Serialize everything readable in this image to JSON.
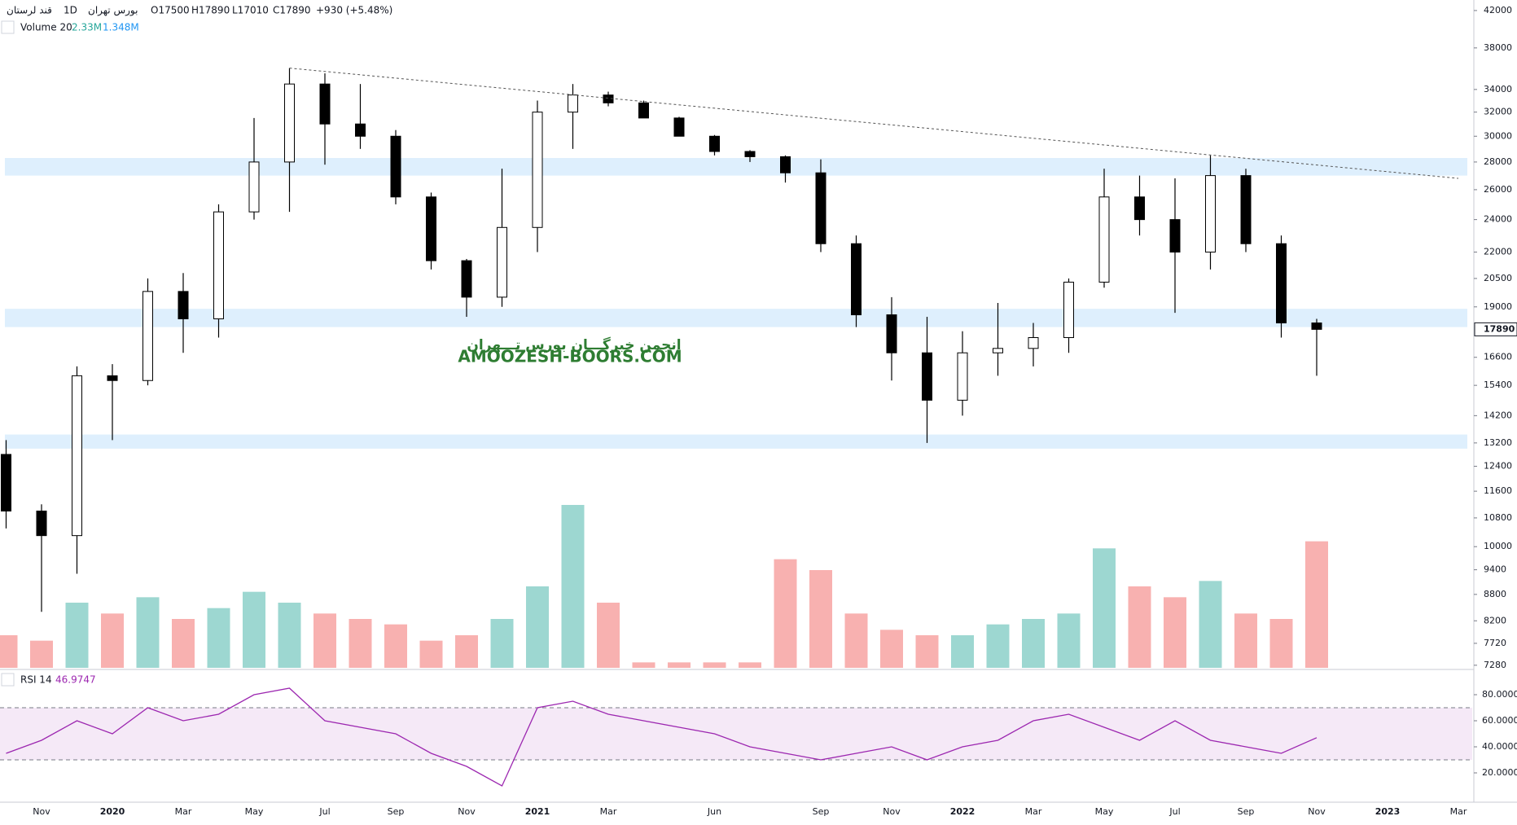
{
  "chart_data": {
    "type": "candlestick",
    "header": {
      "symbol": "قند لرستان",
      "interval": "1D",
      "exchange": "بورس تهران",
      "open": "O17500",
      "high": "H17890",
      "low": "L17010",
      "close": "C17890",
      "change": "+930 (+5.48%)"
    },
    "volume_legend": {
      "label": "Volume 20",
      "last": "2.33M",
      "ma": "1.348M"
    },
    "rsi_legend": {
      "label": "RSI 14",
      "last": "46.9747"
    },
    "watermark": {
      "line1": "انجمن خبرگـــان بورس تـــهران",
      "line2": "AMOOZESH-BOORS.COM"
    },
    "categories": [
      null,
      "Nov",
      null,
      "2020",
      null,
      "Mar",
      null,
      "May",
      null,
      "Jul",
      null,
      "Sep",
      null,
      "Nov",
      null,
      "2021",
      null,
      "Mar",
      null,
      null,
      "Jun",
      null,
      null,
      "Sep",
      null,
      "Nov",
      null,
      "2022",
      null,
      "Mar",
      null,
      "May",
      null,
      "Jul",
      null,
      "Sep",
      null,
      "Nov",
      null,
      "2023",
      null,
      "Mar"
    ],
    "open": [
      12800,
      11000,
      10300,
      15800,
      15600,
      19800,
      18400,
      24500,
      28000,
      34500,
      31000,
      30000,
      25500,
      21500,
      19500,
      23500,
      32000,
      33500,
      32800,
      31500,
      30000,
      28800,
      28400,
      27200,
      22500,
      18600,
      16800,
      14800,
      16800,
      17000,
      17500,
      20300,
      25500,
      24000,
      22000,
      27000,
      22500,
      18200,
      null,
      null,
      null,
      null
    ],
    "high": [
      13300,
      11200,
      16200,
      16300,
      20500,
      20800,
      25000,
      31500,
      36000,
      35500,
      34500,
      30500,
      25800,
      21600,
      27500,
      33000,
      34500,
      33800,
      33000,
      31600,
      30100,
      28900,
      28500,
      28200,
      23000,
      19500,
      18500,
      17800,
      19200,
      18200,
      20500,
      27500,
      27000,
      26800,
      28500,
      27500,
      23000,
      18400,
      null,
      null,
      null,
      null
    ],
    "low": [
      10500,
      8400,
      9300,
      13300,
      15400,
      16800,
      17500,
      24000,
      24500,
      27800,
      29000,
      25000,
      21000,
      18500,
      19000,
      22000,
      29000,
      32500,
      31500,
      30000,
      28500,
      28000,
      26500,
      22000,
      18000,
      15600,
      13200,
      14200,
      15800,
      16200,
      16800,
      20000,
      23000,
      18700,
      21000,
      22000,
      17500,
      15800,
      null,
      null,
      null,
      null
    ],
    "close": [
      11000,
      10300,
      15800,
      15600,
      19800,
      18400,
      24500,
      28000,
      34500,
      31000,
      30000,
      25500,
      21500,
      19500,
      23500,
      32000,
      33500,
      32800,
      31500,
      30000,
      28800,
      28400,
      27200,
      22500,
      18600,
      16800,
      14800,
      16800,
      17000,
      17500,
      20300,
      25500,
      24000,
      22000,
      27000,
      22500,
      18200,
      17890,
      null,
      null,
      null,
      null
    ],
    "volume": [
      0.6,
      0.5,
      1.2,
      1.0,
      1.3,
      0.9,
      1.1,
      1.4,
      1.2,
      1.0,
      0.9,
      0.8,
      0.5,
      0.6,
      0.9,
      1.5,
      3.0,
      1.2,
      0.1,
      0.1,
      0.1,
      0.1,
      2.0,
      1.8,
      1.0,
      0.7,
      0.6,
      0.6,
      0.8,
      0.9,
      1.0,
      2.2,
      1.5,
      1.3,
      1.6,
      1.0,
      0.9,
      2.33,
      null,
      null,
      null,
      null
    ],
    "rsi": [
      35,
      45,
      60,
      50,
      70,
      60,
      65,
      80,
      85,
      60,
      55,
      50,
      35,
      25,
      10,
      70,
      75,
      65,
      60,
      55,
      50,
      40,
      35,
      30,
      35,
      40,
      30,
      40,
      45,
      60,
      65,
      55,
      45,
      60,
      45,
      40,
      35,
      47,
      null,
      null,
      null,
      null
    ],
    "trendline": [
      null,
      null,
      null,
      null,
      null,
      null,
      null,
      null,
      36000,
      null,
      null,
      null,
      null,
      null,
      null,
      null,
      null,
      null,
      null,
      null,
      null,
      null,
      null,
      null,
      null,
      null,
      null,
      null,
      null,
      null,
      null,
      null,
      null,
      null,
      null,
      null,
      null,
      null,
      null,
      null,
      null,
      26800
    ],
    "zones": [
      {
        "low": 27000,
        "high": 28300
      },
      {
        "low": 18000,
        "high": 18900
      },
      {
        "low": 13000,
        "high": 13500
      }
    ],
    "last_price": 17890,
    "ylim": [
      7230,
      43200
    ],
    "log_scale": true,
    "yticks": [
      42000,
      38000,
      34000,
      32000,
      30000,
      28000,
      26000,
      24000,
      22000,
      20500,
      19000,
      16600,
      15400,
      14200,
      13200,
      12400,
      11600,
      10800,
      10000,
      9400,
      8800,
      8200,
      7720,
      7280
    ],
    "rsi_ylim": [
      -2.5,
      98.75
    ],
    "rsi_band": [
      30,
      70
    ],
    "rsi_yticks": [
      {
        "value": 80,
        "label": "80.0000"
      },
      {
        "value": 60,
        "label": "60.0000"
      },
      {
        "value": 40,
        "label": "40.0000"
      },
      {
        "value": 20,
        "label": "20.0000"
      }
    ],
    "colors": {
      "candle": "#000000",
      "up_volume": "rgba(38,166,154,0.45)",
      "down_volume": "rgba(239,83,80,0.45)",
      "rsi": "#9c27b0",
      "zone": "rgba(33,150,243,0.15)"
    }
  }
}
